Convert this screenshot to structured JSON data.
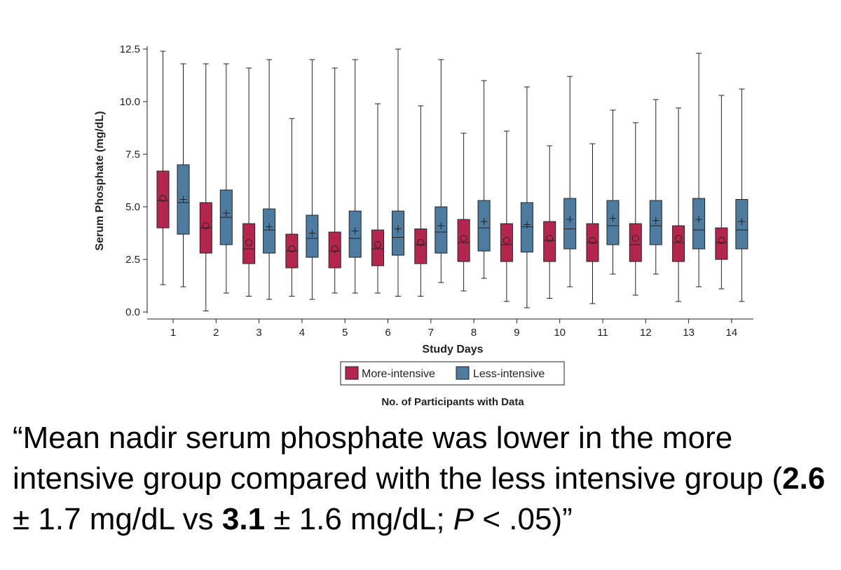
{
  "chart_data": {
    "type": "boxplot",
    "xlabel": "Study Days",
    "ylabel": "Serum Phosphate (mg/dL)",
    "ylim": [
      0,
      12.5
    ],
    "yticks": [
      "0.0",
      "2.5",
      "5.0",
      "7.5",
      "10.0",
      "12.5"
    ],
    "categories": [
      "1",
      "2",
      "3",
      "4",
      "5",
      "6",
      "7",
      "8",
      "9",
      "10",
      "11",
      "12",
      "13",
      "14"
    ],
    "legend_placement": "bottom-center",
    "footer_label": "No. of Participants with Data",
    "series": [
      {
        "name": "More-intensive",
        "color": "#b5264f",
        "min": [
          1.3,
          0.05,
          0.75,
          0.75,
          0.9,
          0.9,
          0.75,
          1.0,
          0.5,
          0.65,
          0.4,
          0.8,
          0.5,
          1.1
        ],
        "q1": [
          4.0,
          2.8,
          2.3,
          2.1,
          2.1,
          2.2,
          2.3,
          2.4,
          2.4,
          2.4,
          2.4,
          2.4,
          2.4,
          2.5
        ],
        "median": [
          5.3,
          4.0,
          3.0,
          2.9,
          2.9,
          3.0,
          3.2,
          3.3,
          3.2,
          3.4,
          3.3,
          3.2,
          3.3,
          3.3
        ],
        "q3": [
          6.7,
          5.2,
          4.2,
          3.7,
          3.8,
          3.9,
          3.95,
          4.4,
          4.2,
          4.3,
          4.2,
          4.2,
          4.1,
          4.0
        ],
        "max": [
          12.4,
          11.8,
          11.6,
          9.2,
          11.6,
          9.9,
          9.8,
          8.5,
          8.6,
          7.9,
          8.0,
          9.0,
          9.7,
          10.3
        ],
        "mean": [
          5.4,
          4.1,
          3.3,
          3.0,
          3.0,
          3.2,
          3.3,
          3.5,
          3.4,
          3.5,
          3.4,
          3.5,
          3.5,
          3.4
        ]
      },
      {
        "name": "Less-intensive",
        "color": "#4e7ba0",
        "min": [
          1.2,
          0.9,
          0.6,
          0.6,
          0.9,
          0.75,
          1.4,
          1.6,
          0.2,
          1.2,
          1.8,
          1.8,
          1.2,
          0.5
        ],
        "q1": [
          3.7,
          3.2,
          2.8,
          2.6,
          2.6,
          2.7,
          2.8,
          2.9,
          2.85,
          3.0,
          3.2,
          3.2,
          3.0,
          3.0
        ],
        "median": [
          5.2,
          4.5,
          3.9,
          3.5,
          3.5,
          3.55,
          3.8,
          4.0,
          4.05,
          3.95,
          4.1,
          4.1,
          3.9,
          3.9
        ],
        "q3": [
          7.0,
          5.8,
          4.9,
          4.6,
          4.8,
          4.8,
          5.0,
          5.3,
          5.2,
          5.4,
          5.3,
          5.3,
          5.4,
          5.35
        ],
        "max": [
          11.8,
          11.8,
          12.0,
          12.0,
          12.0,
          12.5,
          12.0,
          11.0,
          10.7,
          11.2,
          9.6,
          10.1,
          12.3,
          10.6
        ],
        "mean": [
          5.35,
          4.7,
          4.05,
          3.75,
          3.85,
          3.95,
          4.1,
          4.3,
          4.15,
          4.4,
          4.45,
          4.35,
          4.4,
          4.3
        ]
      }
    ]
  },
  "quote": {
    "open": "“Mean nadir serum phosphate was lower in the more intensive group compared with the less intensive group (",
    "value1": "2.6",
    "mid1": " ± 1.7 mg/dL vs ",
    "value2": "3.1",
    "mid2": " ± 1.6 mg/dL; ",
    "p": "P",
    "close": " < .05)”"
  }
}
